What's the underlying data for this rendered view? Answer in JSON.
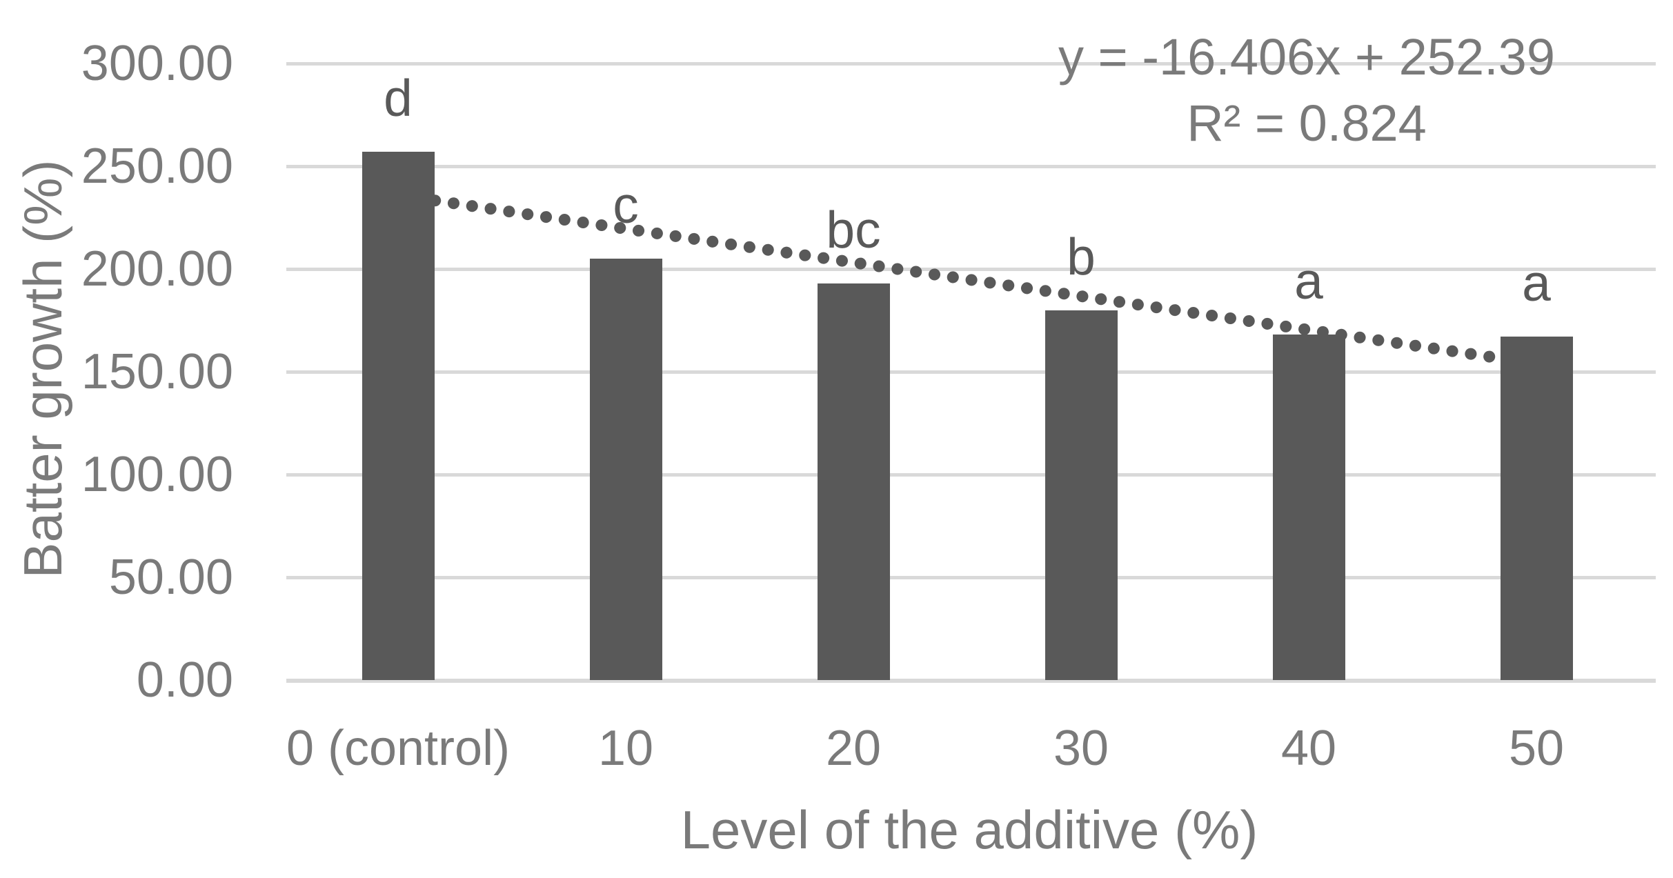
{
  "chart_data": {
    "type": "bar",
    "title": "",
    "xlabel": "Level of the additive (%)",
    "ylabel": "Batter growth (%)",
    "categories": [
      "0 (control)",
      "10",
      "20",
      "30",
      "40",
      "50"
    ],
    "values": [
      257,
      205,
      193,
      180,
      168,
      167
    ],
    "significance_letters": [
      "d",
      "c",
      "bc",
      "b",
      "a",
      "a"
    ],
    "y_ticks": [
      "300.00",
      "250.00",
      "200.00",
      "150.00",
      "100.00",
      "50.00",
      "0.00"
    ],
    "y_tick_values": [
      300,
      250,
      200,
      150,
      100,
      50,
      0
    ],
    "ylim": [
      0,
      300
    ],
    "grid": true,
    "legend_position": "none",
    "trendline": {
      "type": "linear",
      "style": "dotted",
      "equation_label": "y = -16.406x + 252.39",
      "r2_label": "R² = 0.824",
      "slope": -16.406,
      "intercept": 252.39,
      "r_squared": 0.824
    },
    "colors": {
      "bar": "#595959",
      "trendline": "#595959",
      "gridline": "#d9d9d9",
      "text": "#7a7a7a",
      "letter": "#595959"
    }
  }
}
